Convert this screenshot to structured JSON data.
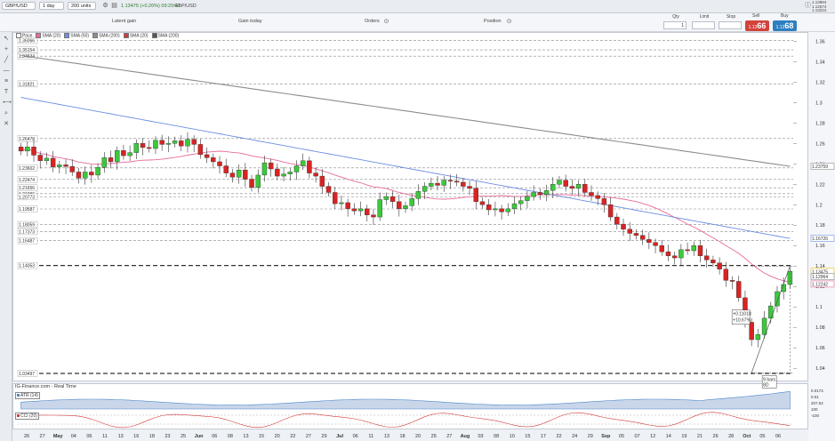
{
  "toolbar": {
    "instrument": "GBP/USD",
    "timeframe": "1 day",
    "units": "200 units",
    "last_price": "1.13475 (+0.26%) 09:29:41",
    "instrument_short": "GBP/USD",
    "right_values": [
      "1.13984",
      "1.12574",
      "1.13224"
    ]
  },
  "strip": {
    "latent_gain_label": "Latent gain",
    "gain_today_label": "Gain today",
    "orders_label": "Orders",
    "position_label": "Position",
    "qty_label": "Qty",
    "qty_value": "1",
    "limit_label": "Limit",
    "stop_label": "Stop",
    "sell_label": "Sell",
    "buy_label": "Buy",
    "sell_price": "66",
    "buy_price": "68",
    "sell_prefix": "1.13",
    "buy_prefix": "1.13"
  },
  "legend": [
    {
      "name": "Price",
      "color": "#ffffff"
    },
    {
      "name": "SMA (20)",
      "color": "#e86b9b"
    },
    {
      "name": "SMA (50)",
      "color": "#6d8fe3"
    },
    {
      "name": "SMA (200)",
      "color": "#8d8d8d"
    },
    {
      "name": "SMA (20)",
      "color": "#d23b3b"
    },
    {
      "name": "SMA (200)",
      "color": "#555555"
    }
  ],
  "chart_data": {
    "type": "candlestick",
    "ylim": [
      1.028,
      1.362
    ],
    "y_ticks": [
      "1.36",
      "1.34",
      "1.32",
      "1.3",
      "1.28",
      "1.26",
      "1.24",
      "1.22",
      "1.2",
      "1.18",
      "1.16",
      "1.14",
      "1.12",
      "1.1",
      "1.08",
      "1.06",
      "1.04"
    ],
    "x_ticks": [
      "26",
      "27",
      "May",
      "04",
      "06",
      "11",
      "13",
      "16",
      "18",
      "23",
      "25",
      "Jun",
      "06",
      "08",
      "13",
      "15",
      "20",
      "22",
      "27",
      "29",
      "Jul",
      "06",
      "11",
      "13",
      "18",
      "20",
      "25",
      "27",
      "Aug",
      "03",
      "08",
      "10",
      "15",
      "17",
      "22",
      "24",
      "29",
      "Sep",
      "05",
      "07",
      "12",
      "14",
      "19",
      "21",
      "26",
      "28",
      "Oct",
      "05",
      "06"
    ],
    "level_labels": [
      {
        "y": 1.36066,
        "label": "1.36066"
      },
      {
        "y": 1.35154,
        "label": "1.35154"
      },
      {
        "y": 1.34534,
        "label": "1.34534"
      },
      {
        "y": 1.31821,
        "label": "1.31821"
      },
      {
        "y": 1.26478,
        "label": "1.26478"
      },
      {
        "y": 1.23602,
        "label": "1.23602"
      },
      {
        "y": 1.22474,
        "label": "1.22474"
      },
      {
        "y": 1.21656,
        "label": "1.21656"
      },
      {
        "y": 1.21086,
        "label": "1.21086"
      },
      {
        "y": 1.20773,
        "label": "1.20773"
      },
      {
        "y": 1.19587,
        "label": "1.19587"
      },
      {
        "y": 1.18059,
        "label": "1.18059"
      },
      {
        "y": 1.17373,
        "label": "1.17373"
      },
      {
        "y": 1.16487,
        "label": "1.16487"
      },
      {
        "y": 1.14053,
        "label": "1.14053"
      },
      {
        "y": 1.03497,
        "label": "1.03497"
      }
    ],
    "right_labels": [
      {
        "y": 1.23759,
        "label": "1.23759",
        "color": "#8d8d8d"
      },
      {
        "y": 1.16726,
        "label": "1.16726",
        "color": "#6d8fe3"
      },
      {
        "y": 1.13475,
        "label": "1.13475",
        "color": "#e8c300"
      },
      {
        "y": 1.12964,
        "label": "1.12964",
        "color": "#888888"
      },
      {
        "y": 1.12242,
        "label": "1.12242",
        "color": "#e86b9b"
      }
    ],
    "annotation": {
      "lines": [
        "+0.11018",
        "+10.67%"
      ],
      "x": 30.4,
      "y": 1.083
    },
    "annotation_bottom": {
      "lines": [
        "9 bars",
        "8D"
      ]
    },
    "closes": [
      1.2525,
      1.2565,
      1.2485,
      1.243,
      1.2455,
      1.237,
      1.239,
      1.2375,
      1.232,
      1.226,
      1.232,
      1.229,
      1.2365,
      1.246,
      1.242,
      1.253,
      1.248,
      1.251,
      1.26,
      1.256,
      1.255,
      1.263,
      1.259,
      1.26,
      1.2625,
      1.2575,
      1.264,
      1.259,
      1.249,
      1.246,
      1.242,
      1.238,
      1.231,
      1.227,
      1.234,
      1.225,
      1.217,
      1.229,
      1.241,
      1.235,
      1.228,
      1.23,
      1.232,
      1.238,
      1.243,
      1.231,
      1.228,
      1.218,
      1.212,
      1.201,
      1.202,
      1.196,
      1.194,
      1.196,
      1.19,
      1.188,
      1.205,
      1.208,
      1.203,
      1.196,
      1.199,
      1.206,
      1.213,
      1.218,
      1.221,
      1.219,
      1.224,
      1.223,
      1.222,
      1.218,
      1.216,
      1.203,
      1.2,
      1.195,
      1.196,
      1.193,
      1.196,
      1.201,
      1.204,
      1.208,
      1.212,
      1.21,
      1.214,
      1.22,
      1.224,
      1.218,
      1.216,
      1.22,
      1.212,
      1.209,
      1.206,
      1.2,
      1.188,
      1.181,
      1.176,
      1.172,
      1.17,
      1.166,
      1.163,
      1.16,
      1.154,
      1.15,
      1.148,
      1.156,
      1.155,
      1.16,
      1.15,
      1.146,
      1.143,
      1.137,
      1.126,
      1.125,
      1.109,
      1.085,
      1.068,
      1.073,
      1.089,
      1.101,
      1.115,
      1.122,
      1.1348
    ]
  },
  "indicators": {
    "credit": "IG-Finance.com - Real Time",
    "atr_label": "ATR (14)",
    "cci_label": "CCI (20)",
    "right_values": [
      "0.0174",
      "0.01",
      "207.52",
      "100",
      "-100"
    ]
  }
}
